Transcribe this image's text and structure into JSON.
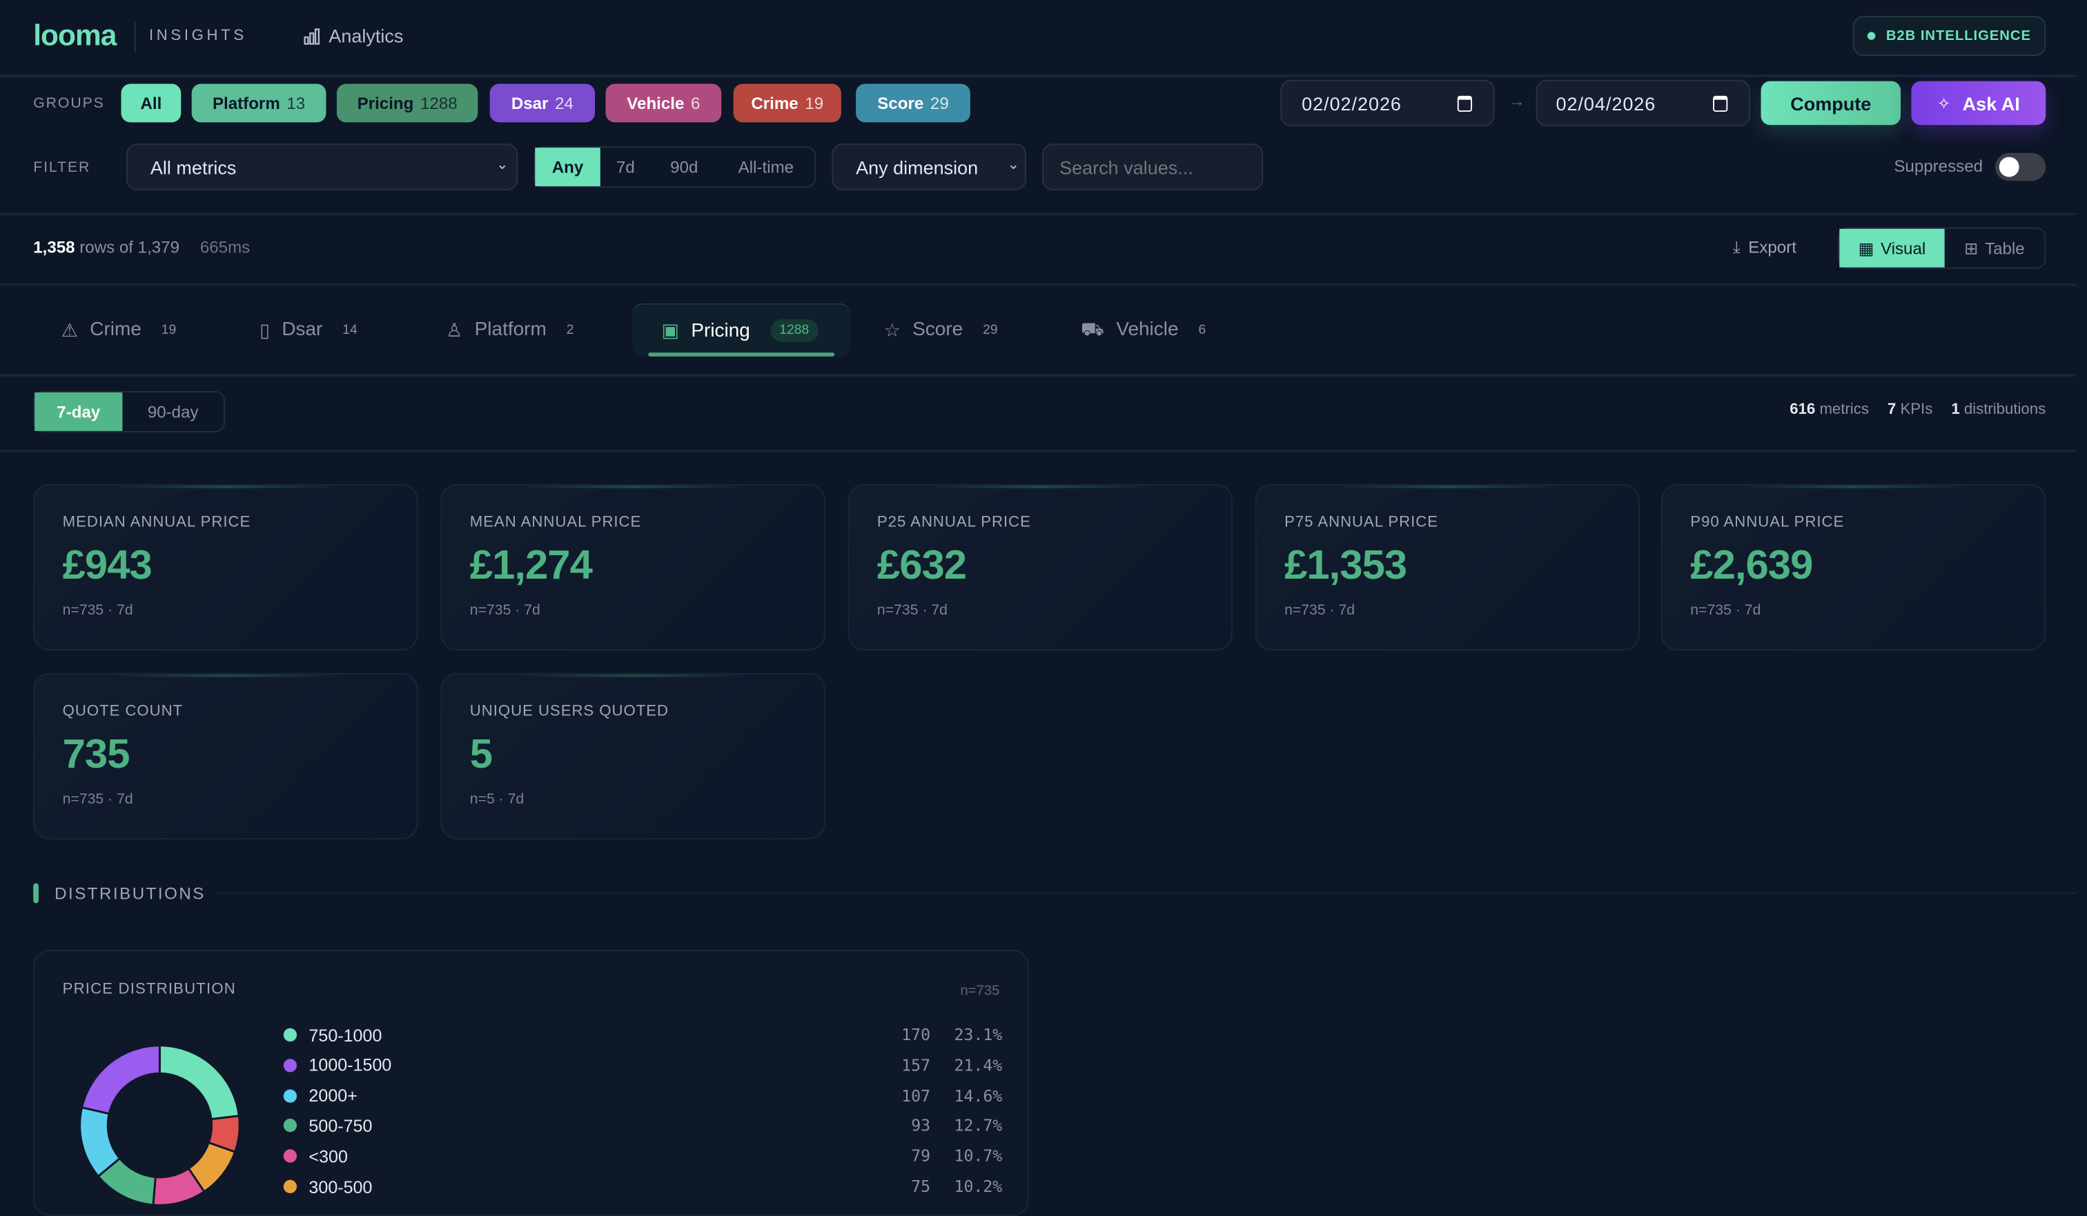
{
  "header": {
    "logo": "looma",
    "product": "INSIGHTS",
    "nav_item": "Analytics",
    "badge": "B2B INTELLIGENCE"
  },
  "groups": {
    "label": "GROUPS",
    "items": [
      {
        "label": "All",
        "count": null,
        "color": "#6ee2b8"
      },
      {
        "label": "Platform",
        "count": "13",
        "color": "#5cbf9a"
      },
      {
        "label": "Pricing",
        "count": "1288",
        "color": "#48936d"
      },
      {
        "label": "Dsar",
        "count": "24",
        "color": "#7b4bd0"
      },
      {
        "label": "Vehicle",
        "count": "6",
        "color": "#b04b80"
      },
      {
        "label": "Crime",
        "count": "19",
        "color": "#b84740"
      },
      {
        "label": "Score",
        "count": "29",
        "color": "#3d8ca8"
      }
    ]
  },
  "dates": {
    "from": "02/02/2026",
    "to": "02/04/2026",
    "compute": "Compute",
    "ask_ai": "Ask AI"
  },
  "filter": {
    "label": "FILTER",
    "metric_select": "All metrics",
    "period_options": [
      "Any",
      "7d",
      "90d",
      "All-time"
    ],
    "period_selected": "Any",
    "dimension_select": "Any dimension",
    "search_placeholder": "Search values...",
    "suppressed_label": "Suppressed",
    "suppressed_on": false
  },
  "stats": {
    "rows": "1,358",
    "rows_suffix": "rows of 1,379",
    "time": "665ms",
    "export": "Export",
    "view_visual": "Visual",
    "view_table": "Table"
  },
  "tabs": [
    {
      "label": "Crime",
      "count": "19",
      "icon": "warning-icon"
    },
    {
      "label": "Dsar",
      "count": "14",
      "icon": "clipboard-icon"
    },
    {
      "label": "Platform",
      "count": "2",
      "icon": "user-icon"
    },
    {
      "label": "Pricing",
      "count": "1288",
      "icon": "banknote-icon",
      "active": true
    },
    {
      "label": "Score",
      "count": "29",
      "icon": "star-icon"
    },
    {
      "label": "Vehicle",
      "count": "6",
      "icon": "truck-icon"
    }
  ],
  "window": {
    "options": [
      "7-day",
      "90-day"
    ],
    "selected": "7-day"
  },
  "summary": {
    "metrics_n": "616",
    "metrics_l": "metrics",
    "kpis_n": "7",
    "kpis_l": "KPIs",
    "dist_n": "1",
    "dist_l": "distributions"
  },
  "kpis": [
    {
      "title": "MEDIAN ANNUAL PRICE",
      "value": "£943",
      "sub": "n=735 · 7d"
    },
    {
      "title": "MEAN ANNUAL PRICE",
      "value": "£1,274",
      "sub": "n=735 · 7d"
    },
    {
      "title": "P25 ANNUAL PRICE",
      "value": "£632",
      "sub": "n=735 · 7d"
    },
    {
      "title": "P75 ANNUAL PRICE",
      "value": "£1,353",
      "sub": "n=735 · 7d"
    },
    {
      "title": "P90 ANNUAL PRICE",
      "value": "£2,639",
      "sub": "n=735 · 7d"
    },
    {
      "title": "QUOTE COUNT",
      "value": "735",
      "sub": "n=735 · 7d"
    },
    {
      "title": "UNIQUE USERS QUOTED",
      "value": "5",
      "sub": "n=5 · 7d"
    }
  ],
  "distributions": {
    "heading": "DISTRIBUTIONS"
  },
  "chart_data": {
    "type": "pie",
    "title": "PRICE DISTRIBUTION",
    "n_label": "n=735",
    "legend": [
      {
        "label": "750-1000",
        "count": "170",
        "pct": "23.1%",
        "color": "#6ee2b8"
      },
      {
        "label": "1000-1500",
        "count": "157",
        "pct": "21.4%",
        "color": "#9b5cf0"
      },
      {
        "label": "2000+",
        "count": "107",
        "pct": "14.6%",
        "color": "#5ccfef"
      },
      {
        "label": "500-750",
        "count": "93",
        "pct": "12.7%",
        "color": "#52b788"
      },
      {
        "label": "<300",
        "count": "79",
        "pct": "10.7%",
        "color": "#e0549a"
      },
      {
        "label": "300-500",
        "count": "75",
        "pct": "10.2%",
        "color": "#e9a23b"
      }
    ],
    "slices_clockwise": [
      {
        "label": "750-1000",
        "value": 23.1,
        "color": "#6ee2b8"
      },
      {
        "label": "",
        "value": 7.3,
        "color": "#e0534f"
      },
      {
        "label": "300-500",
        "value": 10.2,
        "color": "#e9a23b"
      },
      {
        "label": "<300",
        "value": 10.7,
        "color": "#e0549a"
      },
      {
        "label": "500-750",
        "value": 12.7,
        "color": "#52b788"
      },
      {
        "label": "2000+",
        "value": 14.6,
        "color": "#5ccfef"
      },
      {
        "label": "1000-1500",
        "value": 21.4,
        "color": "#9b5cf0"
      }
    ]
  }
}
